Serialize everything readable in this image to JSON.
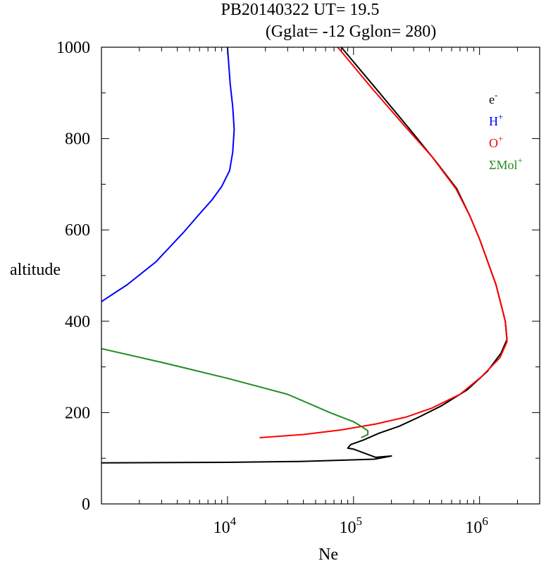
{
  "chart_data": {
    "type": "line",
    "title": "PB20140322   UT=  19.5",
    "subtitle": "(Gglat= -12   Gglon=  280)",
    "xlabel": "Ne",
    "ylabel": "altitude",
    "xscale": "log",
    "xlim": [
      1000,
      3000000
    ],
    "ylim": [
      0,
      1000
    ],
    "y_ticks": [
      "0",
      "200",
      "400",
      "600",
      "800",
      "1000"
    ],
    "y_tick_values": [
      0,
      200,
      400,
      600,
      800,
      1000
    ],
    "x_ticks": [
      {
        "value": 10000,
        "base": "10",
        "exp": "4"
      },
      {
        "value": 100000,
        "base": "10",
        "exp": "5"
      },
      {
        "value": 1000000,
        "base": "10",
        "exp": "6"
      }
    ],
    "legend_position": "top-right",
    "series": [
      {
        "name": "e",
        "sup": "-",
        "color": "#000000",
        "points": [
          [
            1000,
            90
          ],
          [
            10000,
            91
          ],
          [
            38000,
            93
          ],
          [
            147000,
            98
          ],
          [
            200000,
            105
          ],
          [
            150000,
            102
          ],
          [
            125000,
            110
          ],
          [
            100000,
            120
          ],
          [
            90000,
            122
          ],
          [
            95000,
            130
          ],
          [
            120000,
            140
          ],
          [
            160000,
            155
          ],
          [
            230000,
            170
          ],
          [
            330000,
            190
          ],
          [
            500000,
            215
          ],
          [
            800000,
            250
          ],
          [
            1150000,
            290
          ],
          [
            1480000,
            330
          ],
          [
            1650000,
            360
          ],
          [
            1600000,
            400
          ],
          [
            1350000,
            480
          ],
          [
            1000000,
            580
          ],
          [
            840000,
            630
          ],
          [
            660000,
            690
          ],
          [
            450000,
            750
          ],
          [
            280000,
            820
          ],
          [
            150000,
            910
          ],
          [
            80000,
            1000
          ]
        ]
      },
      {
        "name": "H",
        "sup": "+",
        "color": "#0000ff",
        "points": [
          [
            1000,
            443
          ],
          [
            1600,
            480
          ],
          [
            2700,
            530
          ],
          [
            4500,
            595
          ],
          [
            6000,
            635
          ],
          [
            7500,
            665
          ],
          [
            9000,
            695
          ],
          [
            10400,
            730
          ],
          [
            11000,
            770
          ],
          [
            11300,
            820
          ],
          [
            11000,
            870
          ],
          [
            10500,
            920
          ],
          [
            10000,
            1000
          ]
        ]
      },
      {
        "name": "O",
        "sup": "+",
        "color": "#ff0000",
        "points": [
          [
            18000,
            145
          ],
          [
            40000,
            152
          ],
          [
            80000,
            162
          ],
          [
            150000,
            175
          ],
          [
            260000,
            190
          ],
          [
            420000,
            210
          ],
          [
            700000,
            240
          ],
          [
            1050000,
            280
          ],
          [
            1450000,
            320
          ],
          [
            1650000,
            355
          ],
          [
            1600000,
            400
          ],
          [
            1350000,
            480
          ],
          [
            1000000,
            580
          ],
          [
            840000,
            630
          ],
          [
            650000,
            690
          ],
          [
            420000,
            760
          ],
          [
            250000,
            830
          ],
          [
            140000,
            910
          ],
          [
            75000,
            1000
          ]
        ]
      },
      {
        "name": "ΣMol",
        "sup": "+",
        "color": "#228b22",
        "points": [
          [
            1000,
            340
          ],
          [
            3000,
            310
          ],
          [
            10000,
            275
          ],
          [
            30000,
            240
          ],
          [
            65000,
            200
          ],
          [
            100000,
            180
          ],
          [
            115000,
            170
          ],
          [
            130000,
            160
          ],
          [
            130000,
            152
          ],
          [
            115000,
            145
          ]
        ]
      }
    ]
  }
}
